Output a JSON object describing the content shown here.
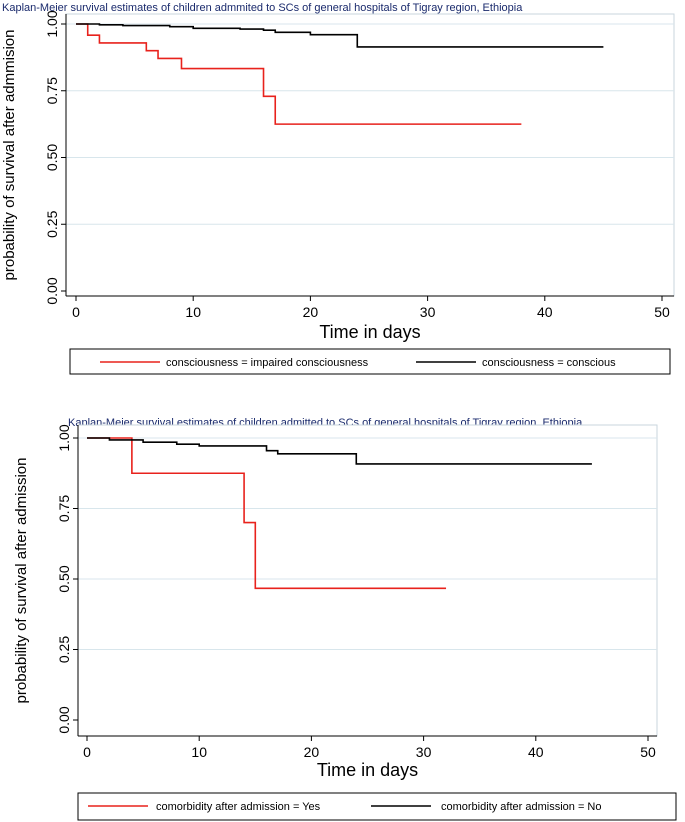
{
  "chart_data": [
    {
      "type": "line",
      "title": "Kaplan-Meier survival estimates of children admmited to SCs of general hospitals of Tigray region, Ethiopia",
      "xlabel": "Time in days",
      "ylabel": "probability of survival after admmision",
      "xlim": [
        0,
        50
      ],
      "ylim": [
        0,
        1
      ],
      "xticks": [
        "0",
        "10",
        "20",
        "30",
        "40",
        "50"
      ],
      "yticks": [
        "0.00",
        "0.25",
        "0.50",
        "0.75",
        "1.00"
      ],
      "grid": true,
      "legend_position": "bottom",
      "series": [
        {
          "name": "consciousness = impaired consciousness",
          "color": "#e8221c",
          "steps": [
            [
              0,
              1.0
            ],
            [
              1,
              0.958
            ],
            [
              2,
              0.929
            ],
            [
              6,
              0.9
            ],
            [
              7,
              0.871
            ],
            [
              9,
              0.833
            ],
            [
              16,
              0.729
            ],
            [
              17,
              0.625
            ],
            [
              38,
              0.625
            ]
          ]
        },
        {
          "name": "consciousness = conscious",
          "color": "#000000",
          "steps": [
            [
              0,
              1.0
            ],
            [
              2,
              0.997
            ],
            [
              4,
              0.994
            ],
            [
              8,
              0.99
            ],
            [
              10,
              0.984
            ],
            [
              14,
              0.981
            ],
            [
              16,
              0.977
            ],
            [
              17,
              0.969
            ],
            [
              20,
              0.96
            ],
            [
              24,
              0.914
            ],
            [
              45,
              0.914
            ]
          ]
        }
      ]
    },
    {
      "type": "line",
      "title": "Kaplan-Meier survival estimates of children admitted to SCs of general hospitals of Tigray region, Ethiopia",
      "xlabel": "Time in days",
      "ylabel": "probability of survival after admission",
      "xlim": [
        0,
        50
      ],
      "ylim": [
        0,
        1
      ],
      "xticks": [
        "0",
        "10",
        "20",
        "30",
        "40",
        "50"
      ],
      "yticks": [
        "0.00",
        "0.25",
        "0.50",
        "0.75",
        "1.00"
      ],
      "grid": true,
      "legend_position": "bottom",
      "series": [
        {
          "name": "comorbidity after admission = Yes",
          "color": "#e8221c",
          "steps": [
            [
              0,
              1.0
            ],
            [
              4,
              0.875
            ],
            [
              14,
              0.7
            ],
            [
              15,
              0.467
            ],
            [
              32,
              0.467
            ]
          ]
        },
        {
          "name": "comorbidity after admission = No",
          "color": "#000000",
          "steps": [
            [
              0,
              1.0
            ],
            [
              2,
              0.993
            ],
            [
              5,
              0.985
            ],
            [
              8,
              0.978
            ],
            [
              10,
              0.972
            ],
            [
              16,
              0.955
            ],
            [
              17,
              0.944
            ],
            [
              24,
              0.908
            ],
            [
              45,
              0.908
            ]
          ]
        }
      ]
    }
  ]
}
